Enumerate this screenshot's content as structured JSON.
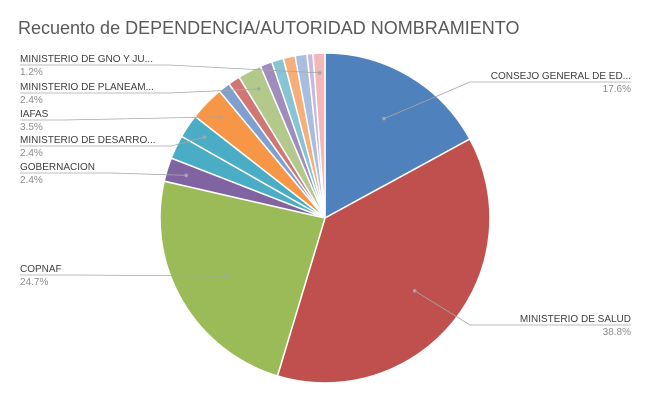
{
  "chart_data": {
    "type": "pie",
    "title": "Recuento de DEPENDENCIA/AUTORIDAD NOMBRAMIENTO",
    "slices": [
      {
        "label": "CONSEJO GENERAL DE ED...",
        "value": 17.6,
        "pct_label": "17.6%",
        "color": "#4f81bd"
      },
      {
        "label": "MINISTERIO DE SALUD",
        "value": 38.8,
        "pct_label": "38.8%",
        "color": "#c0504d"
      },
      {
        "label": "COPNAF",
        "value": 24.7,
        "pct_label": "24.7%",
        "color": "#9bbb59"
      },
      {
        "label": "GOBERNACION",
        "value": 2.4,
        "pct_label": "2.4%",
        "color": "#8064a2"
      },
      {
        "label": "",
        "value": 2.4,
        "pct_label": "",
        "color": "#4bacc6"
      },
      {
        "label": "MINISTERIO DE DESARRO...",
        "value": 2.4,
        "pct_label": "2.4%",
        "color": "#4bacc6"
      },
      {
        "label": "IAFAS",
        "value": 3.5,
        "pct_label": "3.5%",
        "color": "#f79646"
      },
      {
        "label": "",
        "value": 1.2,
        "pct_label": "",
        "color": "#7f9fcf"
      },
      {
        "label": "",
        "value": 1.2,
        "pct_label": "",
        "color": "#d07775"
      },
      {
        "label": "MINISTERIO DE PLANEAM...",
        "value": 2.4,
        "pct_label": "2.4%",
        "color": "#b3c98c"
      },
      {
        "label": "",
        "value": 1.2,
        "pct_label": "",
        "color": "#a08cbd"
      },
      {
        "label": "",
        "value": 1.2,
        "pct_label": "",
        "color": "#86c4d6"
      },
      {
        "label": "",
        "value": 1.2,
        "pct_label": "",
        "color": "#f8ae78"
      },
      {
        "label": "",
        "value": 1.2,
        "pct_label": "",
        "color": "#a8bde0"
      },
      {
        "label": "",
        "value": 0.6,
        "pct_label": "",
        "color": "#c9b7dc"
      },
      {
        "label": "MINISTERIO DE GNO Y JU...",
        "value": 1.2,
        "pct_label": "1.2%",
        "color": "#f2b8b8"
      }
    ]
  }
}
